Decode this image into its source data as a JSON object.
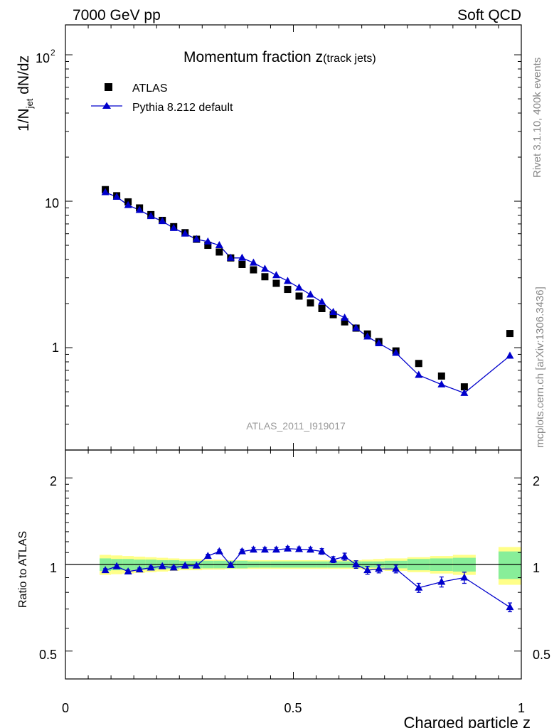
{
  "header": {
    "energy_label": "7000 GeV pp",
    "category_label": "Soft QCD"
  },
  "side_labels": {
    "rivet": "Rivet 3.1.10,  400k events",
    "source": "mcplots.cern.ch [arXiv:1306.3436]"
  },
  "chart_data": {
    "type": "scatter",
    "title": "Momentum fraction z",
    "title_suffix": "(track jets)",
    "analysis_id": "ATLAS_2011_I919017",
    "xlabel": "Charged particle z",
    "ylabel_main": {
      "prefix": "1/N",
      "sub": "jet",
      "suffix": " dN/dz"
    },
    "ylabel_ratio": "Ratio to ATLAS",
    "xlim": [
      0,
      1
    ],
    "ylim_main": [
      0.2,
      160
    ],
    "ylim_ratio": [
      0.4,
      2.5
    ],
    "yscale": "log",
    "x_ticks": [
      "0",
      "0.5",
      "1"
    ],
    "y_ticks_main": {
      "labels": [
        "1",
        "10"
      ],
      "exp_base": "10",
      "exp_power": "2"
    },
    "y_ticks_ratio": [
      "0.5",
      "1",
      "2"
    ],
    "legend": {
      "position": "top-left",
      "entries": [
        {
          "label": "ATLAS",
          "marker": "square",
          "color": "#000000"
        },
        {
          "label": "Pythia 8.212 default",
          "marker": "triangle",
          "color": "#0000cc"
        }
      ]
    },
    "x": [
      0.0875,
      0.1125,
      0.1375,
      0.1625,
      0.1875,
      0.2125,
      0.2375,
      0.2625,
      0.2875,
      0.3125,
      0.3375,
      0.3625,
      0.3875,
      0.4125,
      0.4375,
      0.4625,
      0.4875,
      0.5125,
      0.5375,
      0.5625,
      0.5875,
      0.6125,
      0.6375,
      0.6625,
      0.6875,
      0.725,
      0.775,
      0.825,
      0.875,
      0.975
    ],
    "bins": [
      [
        0.075,
        0.1
      ],
      [
        0.1,
        0.125
      ],
      [
        0.125,
        0.15
      ],
      [
        0.15,
        0.175
      ],
      [
        0.175,
        0.2
      ],
      [
        0.2,
        0.225
      ],
      [
        0.225,
        0.25
      ],
      [
        0.25,
        0.275
      ],
      [
        0.275,
        0.3
      ],
      [
        0.3,
        0.325
      ],
      [
        0.325,
        0.35
      ],
      [
        0.35,
        0.375
      ],
      [
        0.375,
        0.4
      ],
      [
        0.4,
        0.425
      ],
      [
        0.425,
        0.45
      ],
      [
        0.45,
        0.475
      ],
      [
        0.475,
        0.5
      ],
      [
        0.5,
        0.525
      ],
      [
        0.525,
        0.55
      ],
      [
        0.55,
        0.575
      ],
      [
        0.575,
        0.6
      ],
      [
        0.6,
        0.625
      ],
      [
        0.625,
        0.65
      ],
      [
        0.65,
        0.675
      ],
      [
        0.675,
        0.7
      ],
      [
        0.7,
        0.75
      ],
      [
        0.75,
        0.8
      ],
      [
        0.8,
        0.85
      ],
      [
        0.85,
        0.9
      ],
      [
        0.95,
        1.0
      ]
    ],
    "series": [
      {
        "name": "ATLAS",
        "values": [
          12.0,
          10.9,
          9.9,
          9.0,
          8.1,
          7.4,
          6.7,
          6.1,
          5.5,
          5.0,
          4.5,
          4.1,
          3.7,
          3.4,
          3.05,
          2.75,
          2.5,
          2.25,
          2.02,
          1.85,
          1.68,
          1.5,
          1.36,
          1.24,
          1.1,
          0.95,
          0.78,
          0.64,
          0.54,
          1.25
        ]
      },
      {
        "name": "Pythia 8.212 default",
        "values": [
          11.5,
          10.7,
          9.4,
          8.7,
          7.9,
          7.3,
          6.55,
          6.0,
          5.5,
          5.3,
          5.0,
          4.1,
          4.1,
          3.8,
          3.45,
          3.12,
          2.85,
          2.57,
          2.3,
          2.05,
          1.75,
          1.6,
          1.36,
          1.19,
          1.07,
          0.92,
          0.65,
          0.56,
          0.49,
          0.88
        ]
      }
    ],
    "ratio": {
      "values": [
        0.955,
        0.985,
        0.945,
        0.96,
        0.975,
        0.985,
        0.975,
        0.99,
        0.99,
        1.07,
        1.11,
        0.995,
        1.11,
        1.125,
        1.125,
        1.125,
        1.135,
        1.13,
        1.125,
        1.11,
        1.04,
        1.065,
        1.0,
        0.955,
        0.965,
        0.965,
        0.83,
        0.87,
        0.9,
        0.71
      ],
      "errors": [
        0.012,
        0.012,
        0.012,
        0.012,
        0.012,
        0.012,
        0.012,
        0.012,
        0.012,
        0.015,
        0.015,
        0.015,
        0.02,
        0.02,
        0.02,
        0.02,
        0.02,
        0.02,
        0.02,
        0.025,
        0.025,
        0.03,
        0.03,
        0.03,
        0.03,
        0.03,
        0.03,
        0.035,
        0.04,
        0.025
      ],
      "band_stat": [
        0.05,
        0.045,
        0.045,
        0.04,
        0.04,
        0.035,
        0.035,
        0.03,
        0.03,
        0.03,
        0.03,
        0.03,
        0.03,
        0.025,
        0.025,
        0.025,
        0.025,
        0.025,
        0.025,
        0.025,
        0.025,
        0.025,
        0.025,
        0.025,
        0.025,
        0.03,
        0.045,
        0.05,
        0.055,
        0.11
      ],
      "band_total": [
        0.08,
        0.075,
        0.07,
        0.065,
        0.06,
        0.055,
        0.05,
        0.045,
        0.045,
        0.04,
        0.04,
        0.035,
        0.035,
        0.035,
        0.035,
        0.035,
        0.035,
        0.035,
        0.035,
        0.035,
        0.035,
        0.035,
        0.035,
        0.04,
        0.045,
        0.05,
        0.06,
        0.07,
        0.08,
        0.15
      ]
    }
  }
}
